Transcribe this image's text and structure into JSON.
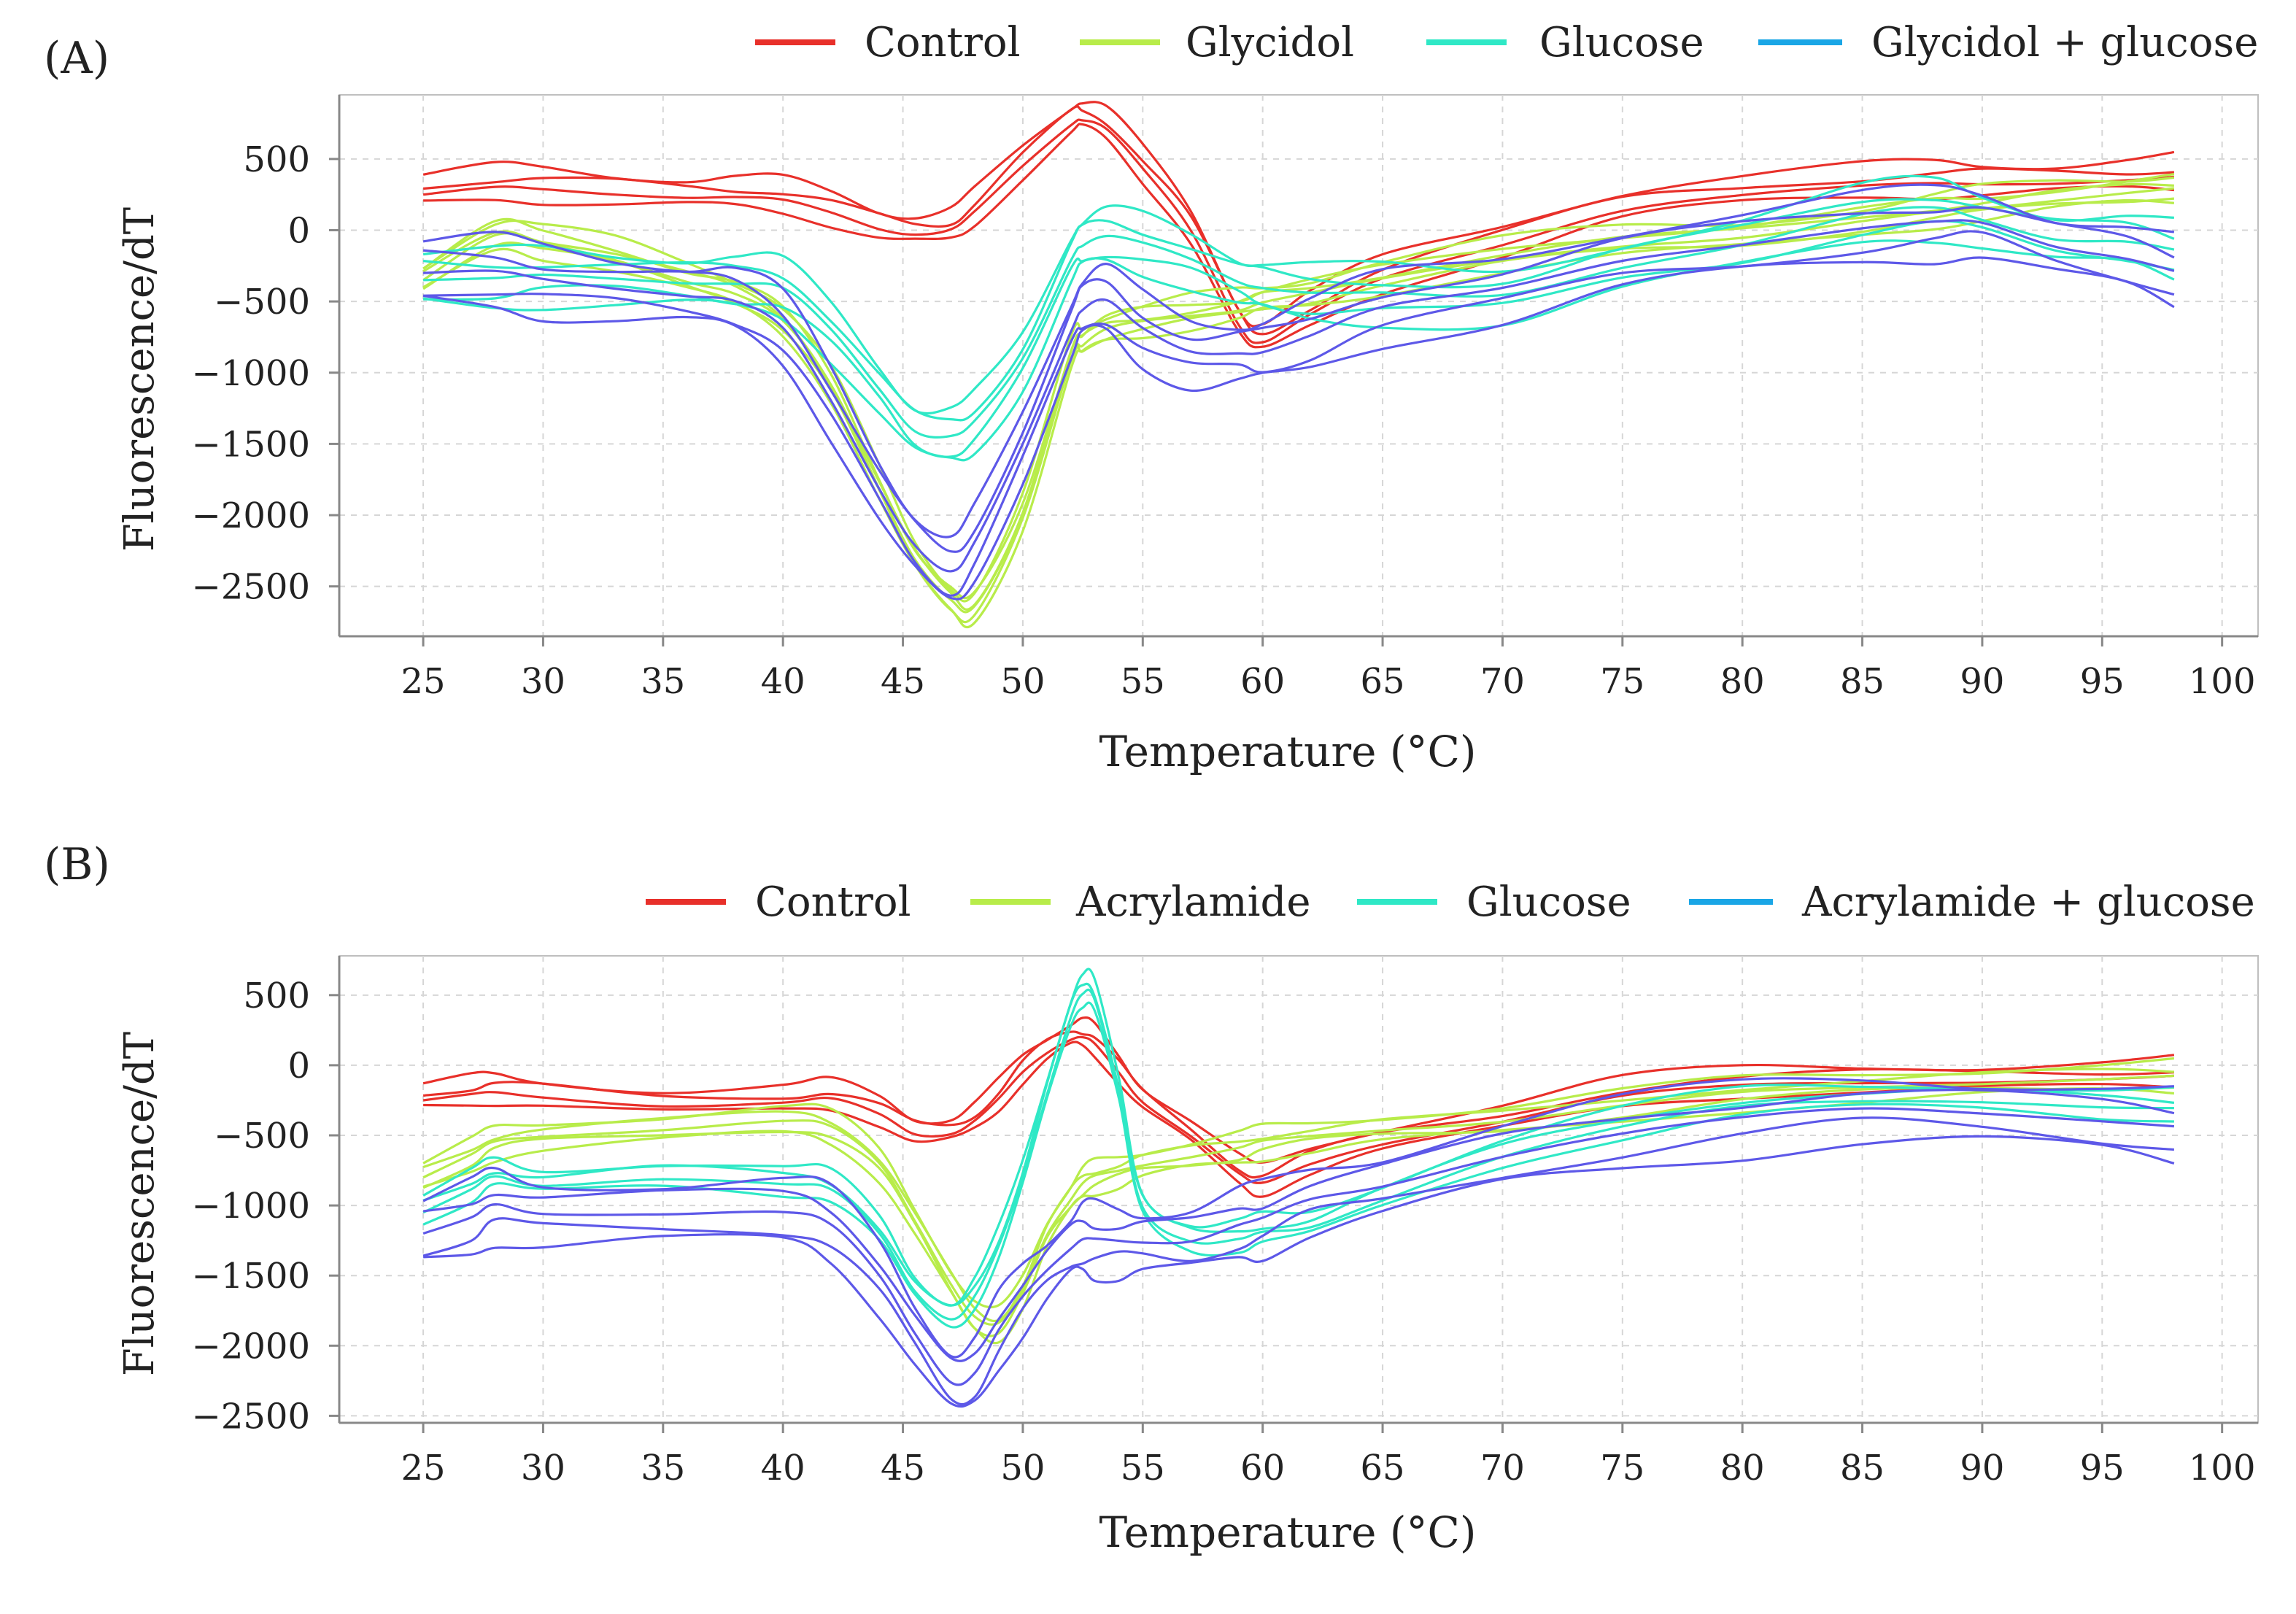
{
  "chart_data": [
    {
      "type": "line",
      "panel_label": "(A)",
      "xlabel": "Temperature (°C)",
      "ylabel": "Fluorescence/dT",
      "xlim": [
        21.5,
        101.5
      ],
      "ylim": [
        -2850,
        950
      ],
      "xticks": [
        25,
        30,
        35,
        40,
        45,
        50,
        55,
        60,
        65,
        70,
        75,
        80,
        85,
        90,
        95,
        100
      ],
      "yticks": [
        500,
        0,
        -500,
        -1000,
        -1500,
        -2000,
        -2500
      ],
      "ytick_labels": [
        "500",
        "0",
        "−500",
        "−1000",
        "−1500",
        "−2000",
        "−2500"
      ],
      "grid": true,
      "legend_position": "top-right",
      "legend": [
        {
          "name": "Control",
          "color": "#e8302a"
        },
        {
          "name": "Glycidol",
          "color": "#b8ec4a"
        },
        {
          "name": "Glucose",
          "color": "#2fe8c6"
        },
        {
          "name": "Glycidol + glucose",
          "color": "#1aa6e6"
        }
      ],
      "x": [
        25,
        28,
        30,
        33,
        36,
        38,
        40,
        42,
        44,
        45.5,
        47,
        48,
        50,
        52,
        52.5,
        53.5,
        55,
        57,
        59,
        60,
        62,
        65,
        70,
        75,
        80,
        85,
        88,
        90,
        93,
        96,
        98
      ],
      "series": [
        {
          "name": "Control",
          "color": "#e8302a",
          "values": [
            250,
            290,
            280,
            260,
            240,
            230,
            200,
            120,
            20,
            -20,
            0,
            120,
            450,
            750,
            780,
            700,
            420,
            0,
            -650,
            -780,
            -600,
            -350,
            -100,
            150,
            250,
            300,
            320,
            330,
            340,
            350,
            360
          ],
          "replicates": [
            0,
            -70,
            70,
            140
          ]
        },
        {
          "name": "Glycidol",
          "color": "#b8ec4a",
          "values": [
            -350,
            -50,
            -100,
            -200,
            -350,
            -450,
            -650,
            -1100,
            -1800,
            -2300,
            -2600,
            -2650,
            -2000,
            -900,
            -800,
            -700,
            -650,
            -600,
            -550,
            -500,
            -450,
            -350,
            -200,
            -100,
            -50,
            50,
            120,
            160,
            220,
            260,
            280
          ],
          "replicates": [
            0,
            40,
            -40,
            80,
            -80,
            120
          ]
        },
        {
          "name": "Glucose",
          "color": "#2fe8c6",
          "values": [
            -350,
            -350,
            -320,
            -330,
            -360,
            -380,
            -420,
            -700,
            -1100,
            -1400,
            -1450,
            -1350,
            -900,
            -200,
            -100,
            -50,
            -100,
            -200,
            -350,
            -400,
            -450,
            -450,
            -450,
            -250,
            -100,
            100,
            150,
            80,
            -50,
            -80,
            -150
          ],
          "replicates": [
            0,
            100,
            -100,
            180,
            -180
          ]
        },
        {
          "name": "Glycidol + glucose",
          "color": "#5d58e8",
          "values": [
            -300,
            -300,
            -350,
            -400,
            -450,
            -500,
            -700,
            -1200,
            -1800,
            -2200,
            -2400,
            -2200,
            -1500,
            -700,
            -550,
            -500,
            -700,
            -850,
            -850,
            -850,
            -750,
            -550,
            -400,
            -200,
            -100,
            0,
            50,
            60,
            -100,
            -200,
            -300
          ],
          "replicates": [
            0,
            120,
            -120,
            220,
            -220
          ]
        }
      ]
    },
    {
      "type": "line",
      "panel_label": "(B)",
      "xlabel": "Temperature (°C)",
      "ylabel": "Fluorescence/dT",
      "xlim": [
        21.5,
        101.5
      ],
      "ylim": [
        -2550,
        780
      ],
      "xticks": [
        25,
        30,
        35,
        40,
        45,
        50,
        55,
        60,
        65,
        70,
        75,
        80,
        85,
        90,
        95,
        100
      ],
      "yticks": [
        500,
        0,
        -500,
        -1000,
        -1500,
        -2000,
        -2500
      ],
      "ytick_labels": [
        "500",
        "0",
        "−500",
        "−1000",
        "−1500",
        "−2000",
        "−2500"
      ],
      "grid": true,
      "legend_position": "top-right",
      "legend": [
        {
          "name": "Control",
          "color": "#e8302a"
        },
        {
          "name": "Acrylamide",
          "color": "#b8ec4a"
        },
        {
          "name": "Glucose",
          "color": "#2fe8c6"
        },
        {
          "name": "Acrylamide + glucose",
          "color": "#1aa6e6"
        }
      ],
      "x": [
        25,
        27,
        28,
        30,
        35,
        40,
        42,
        44,
        45.5,
        47,
        48,
        49,
        50,
        51,
        52,
        52.5,
        53,
        54,
        55,
        57,
        59,
        60,
        62,
        65,
        70,
        75,
        80,
        85,
        90,
        95,
        98
      ],
      "series": [
        {
          "name": "Control",
          "color": "#e8302a",
          "values": [
            -250,
            -220,
            -200,
            -220,
            -280,
            -270,
            -250,
            -350,
            -480,
            -480,
            -400,
            -250,
            -50,
            100,
            190,
            190,
            140,
            -50,
            -250,
            -500,
            -780,
            -850,
            -700,
            -550,
            -400,
            -230,
            -150,
            -120,
            -110,
            -100,
            -90
          ],
          "replicates": [
            0,
            -60,
            60,
            120
          ]
        },
        {
          "name": "Acrylamide",
          "color": "#b8ec4a",
          "values": [
            -800,
            -650,
            -550,
            -500,
            -450,
            -400,
            -450,
            -700,
            -1100,
            -1550,
            -1800,
            -1850,
            -1600,
            -1200,
            -950,
            -850,
            -800,
            -750,
            -700,
            -650,
            -600,
            -550,
            -500,
            -450,
            -400,
            -300,
            -200,
            -150,
            -120,
            -100,
            -90
          ],
          "replicates": [
            0,
            50,
            -50,
            100,
            -100
          ]
        },
        {
          "name": "Glucose",
          "color": "#2fe8c6",
          "values": [
            -1050,
            -900,
            -800,
            -850,
            -800,
            -850,
            -900,
            -1200,
            -1600,
            -1800,
            -1650,
            -1300,
            -800,
            -200,
            350,
            500,
            450,
            -200,
            -1000,
            -1250,
            -1250,
            -1200,
            -1150,
            -950,
            -650,
            -450,
            -300,
            -250,
            -250,
            -300,
            -320
          ],
          "replicates": [
            0,
            60,
            -60,
            120
          ]
        },
        {
          "name": "Acrylamide + glucose",
          "color": "#5d58e8",
          "values": [
            -1200,
            -1100,
            -1000,
            -1050,
            -1050,
            -1050,
            -1150,
            -1500,
            -1900,
            -2250,
            -2200,
            -1900,
            -1650,
            -1450,
            -1300,
            -1250,
            -1250,
            -1250,
            -1250,
            -1250,
            -1150,
            -1100,
            -950,
            -850,
            -650,
            -500,
            -380,
            -300,
            -330,
            -400,
            -450
          ],
          "replicates": [
            0,
            120,
            -120,
            230,
            -230
          ]
        }
      ]
    }
  ]
}
